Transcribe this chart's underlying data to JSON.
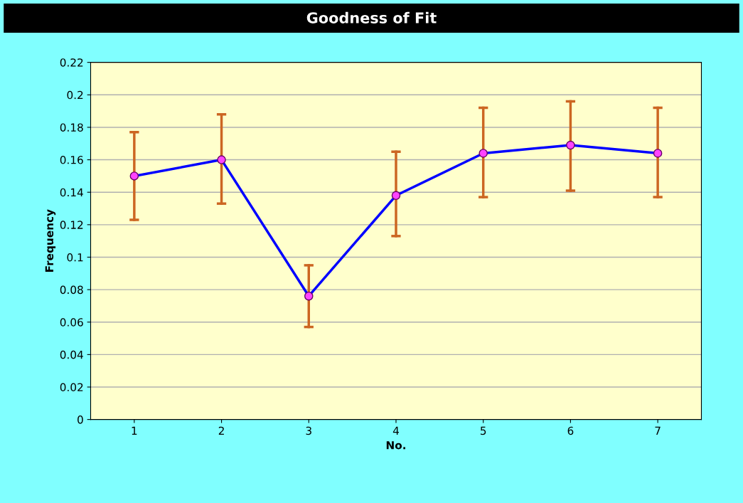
{
  "chart_data": {
    "type": "line",
    "title": "Goodness of Fit",
    "xlabel": "No.",
    "ylabel": "Frequency",
    "categories": [
      "1",
      "2",
      "3",
      "4",
      "5",
      "6",
      "7"
    ],
    "series": [
      {
        "color": "#0000ff",
        "values": [
          0.15,
          0.16,
          0.076,
          0.138,
          0.164,
          0.169,
          0.164
        ],
        "errors": [
          [
            0.123,
            0.177
          ],
          [
            0.133,
            0.188
          ],
          [
            0.057,
            0.095
          ],
          [
            0.113,
            0.165
          ],
          [
            0.137,
            0.192
          ],
          [
            0.141,
            0.196
          ],
          [
            0.137,
            0.192
          ]
        ]
      }
    ],
    "ylim": [
      0,
      0.22
    ],
    "yticks": [
      0,
      0.02,
      0.04,
      0.06,
      0.08,
      0.1,
      0.12,
      0.14,
      0.16,
      0.18,
      0.2,
      0.22
    ],
    "grid": "y",
    "marker": "circle",
    "line_style": "solid",
    "legend": false
  }
}
